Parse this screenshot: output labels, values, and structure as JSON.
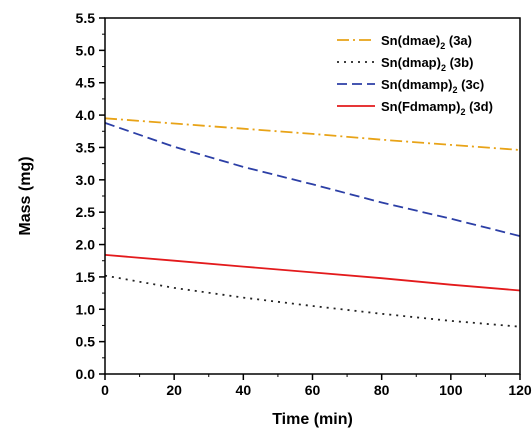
{
  "chart_data": {
    "type": "line",
    "xlabel": "Time (min)",
    "ylabel": "Mass (mg)",
    "xlim": [
      0,
      120
    ],
    "ylim": [
      0.0,
      5.5
    ],
    "x_ticks": [
      "0",
      "20",
      "40",
      "60",
      "80",
      "100",
      "120"
    ],
    "y_ticks": [
      "0.0",
      "0.5",
      "1.0",
      "1.5",
      "2.0",
      "2.5",
      "3.0",
      "3.5",
      "4.0",
      "4.5",
      "5.0",
      "5.5"
    ],
    "grid": false,
    "legend_position": "top-right",
    "series": [
      {
        "name_main": "Sn(dmae)",
        "name_sub": "2",
        "name_tail": " (3a)",
        "color": "#e8a317",
        "dash": "12,4,2,4",
        "x": [
          0,
          20,
          40,
          60,
          80,
          100,
          120
        ],
        "y": [
          3.95,
          3.87,
          3.79,
          3.71,
          3.62,
          3.54,
          3.46
        ]
      },
      {
        "name_main": "Sn(dmap)",
        "name_sub": "2",
        "name_tail": " (3b)",
        "color": "#222222",
        "dash": "2,5",
        "x": [
          0,
          20,
          40,
          60,
          80,
          100,
          120
        ],
        "y": [
          1.52,
          1.33,
          1.18,
          1.05,
          0.93,
          0.82,
          0.73
        ]
      },
      {
        "name_main": "Sn(dmamp)",
        "name_sub": "2",
        "name_tail": " (3c)",
        "color": "#2c3fa6",
        "dash": "10,5",
        "x": [
          0,
          20,
          40,
          60,
          80,
          100,
          120
        ],
        "y": [
          3.88,
          3.51,
          3.2,
          2.93,
          2.65,
          2.4,
          2.13
        ]
      },
      {
        "name_main": "Sn(Fdmamp)",
        "name_sub": "2",
        "name_tail": " (3d)",
        "color": "#e31a1c",
        "dash": "",
        "x": [
          0,
          20,
          40,
          60,
          80,
          100,
          120
        ],
        "y": [
          1.84,
          1.75,
          1.66,
          1.57,
          1.48,
          1.38,
          1.29
        ]
      }
    ]
  }
}
